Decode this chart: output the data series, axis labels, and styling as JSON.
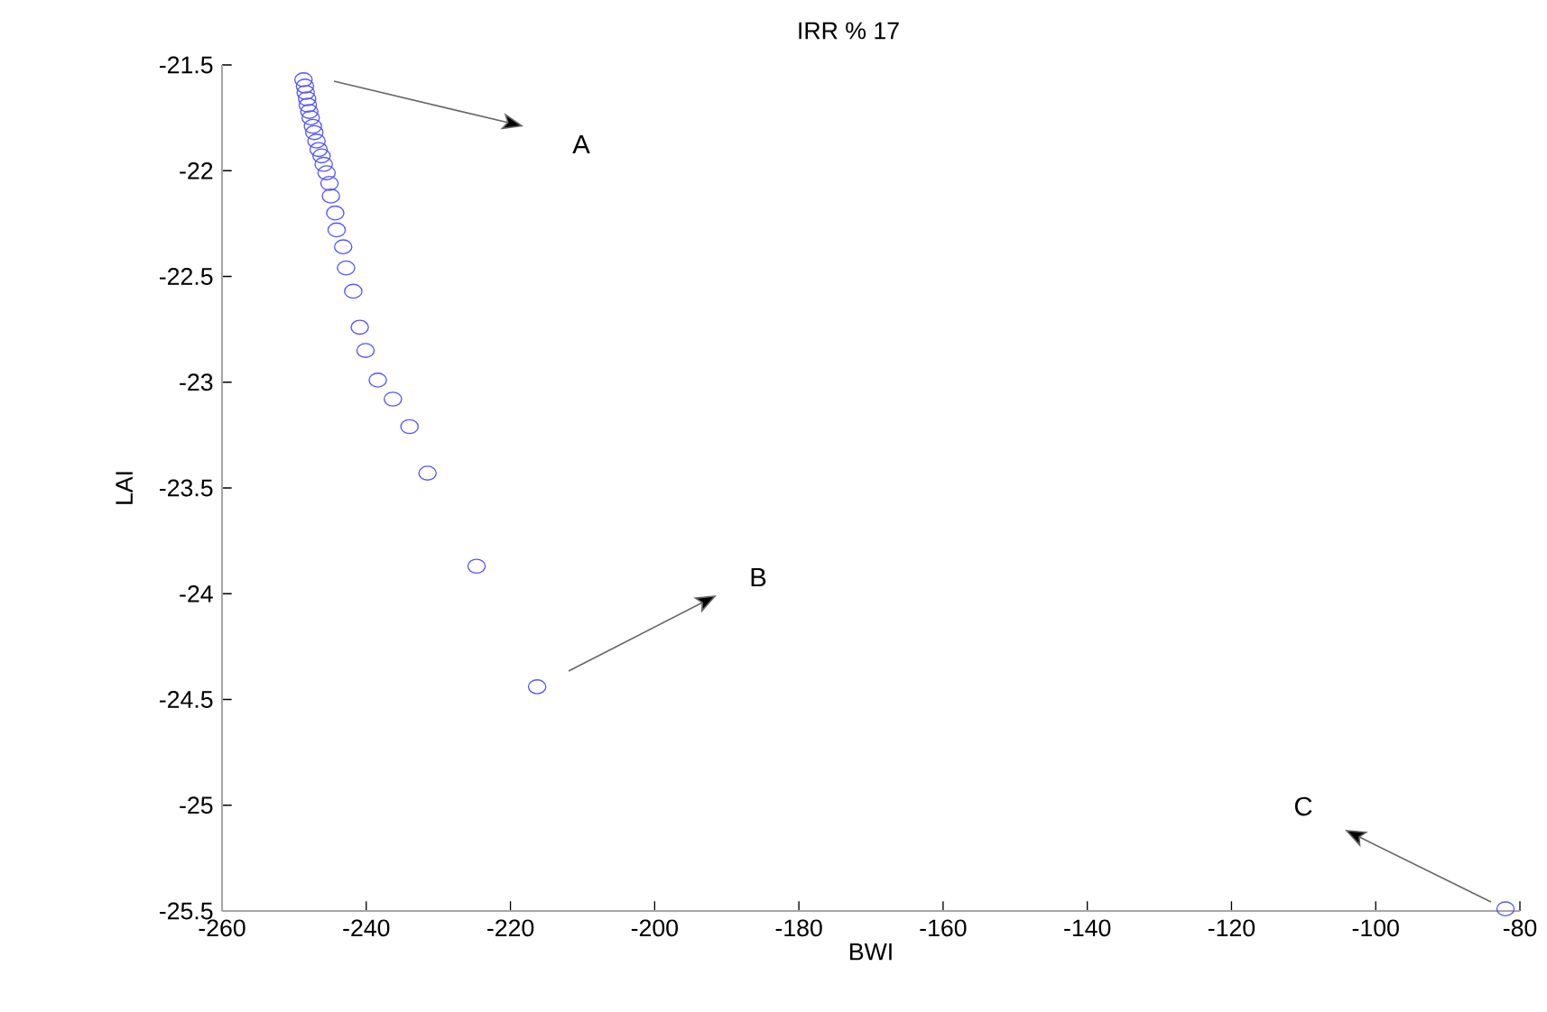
{
  "chart_data": {
    "type": "scatter",
    "title": "IRR % 17",
    "xlabel": "BWI",
    "ylabel": "LAI",
    "x": [
      -248.7,
      -248.5,
      -248.4,
      -248.2,
      -248.1,
      -247.9,
      -247.7,
      -247.4,
      -247.2,
      -246.9,
      -246.6,
      -246.2,
      -245.9,
      -245.5,
      -245.1,
      -244.9,
      -244.3,
      -244.1,
      -243.2,
      -242.8,
      -241.8,
      -240.9,
      -240.1,
      -238.4,
      -236.3,
      -234.0,
      -231.5,
      -224.7,
      -216.3,
      -82.0
    ],
    "values": [
      -21.57,
      -21.6,
      -21.63,
      -21.66,
      -21.69,
      -21.72,
      -21.75,
      -21.79,
      -21.82,
      -21.86,
      -21.9,
      -21.93,
      -21.97,
      -22.01,
      -22.06,
      -22.12,
      -22.2,
      -22.28,
      -22.36,
      -22.46,
      -22.57,
      -22.74,
      -22.85,
      -22.99,
      -23.08,
      -23.21,
      -23.43,
      -23.87,
      -24.44,
      -25.49
    ],
    "color": "#5555ff",
    "marker": "circle",
    "xlim": [
      -260,
      -80
    ],
    "xticks": [
      -260,
      -240,
      -220,
      -200,
      -180,
      -160,
      -140,
      -120,
      -100,
      -80
    ],
    "ylim": [
      -25.5,
      -21.5
    ],
    "yticks": [
      -25.5,
      -25,
      -24.5,
      -24,
      -23.5,
      -23,
      -22.5,
      -22,
      -21.5
    ],
    "annotations": [
      "A",
      "B",
      "C"
    ]
  }
}
